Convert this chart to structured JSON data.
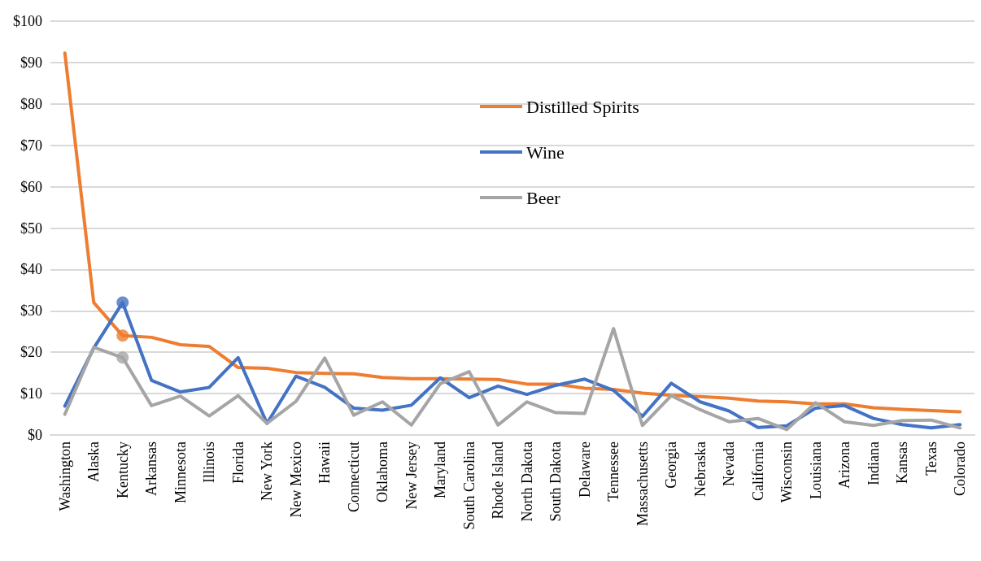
{
  "chart_data": {
    "type": "line",
    "categories": [
      "Washington",
      "Alaska",
      "Kentucky",
      "Arkansas",
      "Minnesota",
      "Illinois",
      "Florida",
      "New York",
      "New Mexico",
      "Hawaii",
      "Connecticut",
      "Oklahoma",
      "New Jersey",
      "Maryland",
      "South Carolina",
      "Rhode Island",
      "North Dakota",
      "South Dakota",
      "Delaware",
      "Tennessee",
      "Massachusetts",
      "Georgia",
      "Nebraska",
      "Nevada",
      "California",
      "Wisconsin",
      "Louisiana",
      "Arizona",
      "Indiana",
      "Kansas",
      "Texas",
      "Colorado"
    ],
    "series": [
      {
        "name": "Distilled Spirits",
        "color": "#ed7d31",
        "marker": "none",
        "values": [
          92.3,
          32,
          24,
          23.6,
          21.8,
          21.4,
          16.3,
          16.1,
          15.1,
          14.9,
          14.8,
          13.9,
          13.6,
          13.6,
          13.5,
          13.4,
          12.3,
          12.3,
          11.3,
          11.0,
          10.1,
          9.6,
          9.3,
          8.9,
          8.2,
          8.0,
          7.5,
          7.5,
          6.6,
          6.2,
          5.9,
          5.6
        ]
      },
      {
        "name": "Wine",
        "color": "#4472c4",
        "marker": "none",
        "values": [
          7,
          21,
          32,
          13.2,
          10.4,
          11.5,
          18.7,
          2.8,
          14.2,
          11.5,
          6.5,
          6.0,
          7.2,
          13.8,
          9.0,
          11.8,
          9.8,
          12,
          13.5,
          10.8,
          4.5,
          12.5,
          8,
          5.8,
          1.8,
          2.2,
          6.5,
          7.1,
          4,
          2.5,
          1.7,
          2.5
        ]
      },
      {
        "name": "Beer",
        "color": "#a5a5a5",
        "marker": "none",
        "values": [
          5,
          21.2,
          18.7,
          7.1,
          9.4,
          4.6,
          9.5,
          2.8,
          8.1,
          18.6,
          4.8,
          8.0,
          2.4,
          12.4,
          15.3,
          2.4,
          8.0,
          5.4,
          5.2,
          25.7,
          2.3,
          9.5,
          6.1,
          3.2,
          4.0,
          1.3,
          7.8,
          3.2,
          2.3,
          3.5,
          3.6,
          1.7
        ]
      },
      {
        "type": "scatter",
        "marker": "circle",
        "color": "#ed7d31",
        "x": [
          "Kentucky"
        ],
        "values": [
          24
        ]
      },
      {
        "type": "scatter",
        "marker": "circle",
        "color": "#4472c4",
        "x": [
          "Kentucky"
        ],
        "values": [
          32
        ]
      },
      {
        "type": "scatter",
        "marker": "circle",
        "color": "#a5a5a5",
        "x": [
          "Kentucky"
        ],
        "values": [
          18.7
        ]
      }
    ],
    "ylim": [
      0,
      100
    ],
    "yticks": [
      {
        "value": 0,
        "label": "$0"
      },
      {
        "value": 10,
        "label": "$10"
      },
      {
        "value": 20,
        "label": "$20"
      },
      {
        "value": 30,
        "label": "$30"
      },
      {
        "value": 40,
        "label": "$40"
      },
      {
        "value": 50,
        "label": "$50"
      },
      {
        "value": 60,
        "label": "$60"
      },
      {
        "value": 70,
        "label": "$70"
      },
      {
        "value": 80,
        "label": "$80"
      },
      {
        "value": 90,
        "label": "$90"
      },
      {
        "value": 100,
        "label": "$100"
      }
    ],
    "grid": "y",
    "legend": "top",
    "line_style": "solid"
  }
}
